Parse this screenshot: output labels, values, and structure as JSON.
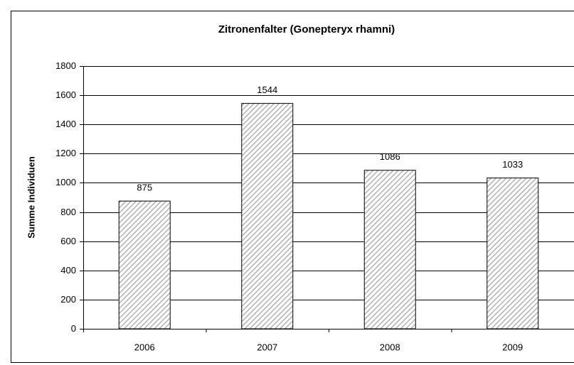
{
  "chart_data": {
    "type": "bar",
    "title": "Zitronenfalter (Gonepteryx rhamni)",
    "ylabel": "Summe Individuen",
    "categories": [
      "2006",
      "2007",
      "2008",
      "2009"
    ],
    "values": [
      875,
      1544,
      1086,
      1033
    ],
    "ylim": [
      0,
      1800
    ],
    "yticks": [
      0,
      200,
      400,
      600,
      800,
      1000,
      1200,
      1400,
      1600,
      1800
    ],
    "grid": true,
    "color": "#a0a0a0"
  }
}
